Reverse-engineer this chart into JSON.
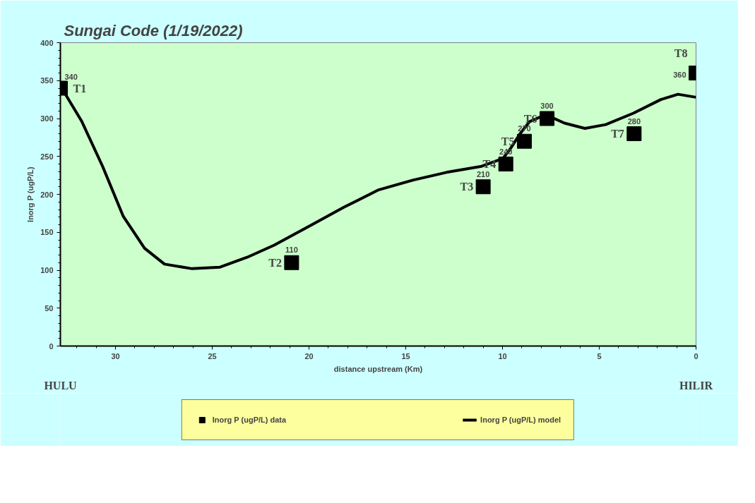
{
  "chart_data": {
    "type": "scatter",
    "title": "Sungai Code (1/19/2022)",
    "xlabel": "distance upstream (Km)",
    "ylabel": "Inorg P (ugP/L)",
    "xlim": [
      32.85,
      0
    ],
    "xticks": [
      30,
      25,
      20,
      15,
      10,
      5,
      0
    ],
    "ylim": [
      0,
      400
    ],
    "yticks": [
      0,
      50,
      100,
      150,
      200,
      250,
      300,
      350,
      400
    ],
    "grid": false,
    "legend": "bottom",
    "series": [
      {
        "name": "Inorg P (ugP/L) data",
        "marker": "square",
        "color": "#000000",
        "x": [
          32.85,
          20.9,
          11.0,
          9.83,
          8.87,
          7.7,
          3.2,
          0
        ],
        "values": [
          340,
          110,
          210,
          240,
          270,
          300,
          280,
          360
        ],
        "data_labels": true
      },
      {
        "name": "Inorg P (ugP/L) model",
        "type": "line",
        "color": "#000000",
        "line_style": "solid",
        "x": [
          32.85,
          31.74,
          30.67,
          29.6,
          28.5,
          27.47,
          26.04,
          24.6,
          23.2,
          21.8,
          20.0,
          18.2,
          16.4,
          14.6,
          12.9,
          11.08,
          10.0,
          9.65,
          9.12,
          8.6,
          8.05,
          7.5,
          6.8,
          5.74,
          4.67,
          3.24,
          1.82,
          0.93,
          0
        ],
        "values": [
          343,
          296,
          237,
          171,
          129,
          108,
          102,
          104,
          117,
          133,
          158,
          183,
          206,
          219,
          229,
          237,
          247,
          258,
          279,
          296,
          302,
          302,
          294,
          287,
          292,
          307,
          325,
          332,
          328
        ]
      }
    ],
    "annotations": [
      {
        "text": "T1",
        "x": 32.85,
        "y": 340
      },
      {
        "text": "T2",
        "x": 20.9,
        "y": 110
      },
      {
        "text": "T3",
        "x": 11.0,
        "y": 210
      },
      {
        "text": "T4",
        "x": 9.83,
        "y": 240
      },
      {
        "text": "T5",
        "x": 8.87,
        "y": 270
      },
      {
        "text": "T6",
        "x": 7.7,
        "y": 300
      },
      {
        "text": "T7",
        "x": 3.2,
        "y": 280
      },
      {
        "text": "T8",
        "x": 0,
        "y": 360
      },
      "HULU",
      "HILIR"
    ]
  }
}
